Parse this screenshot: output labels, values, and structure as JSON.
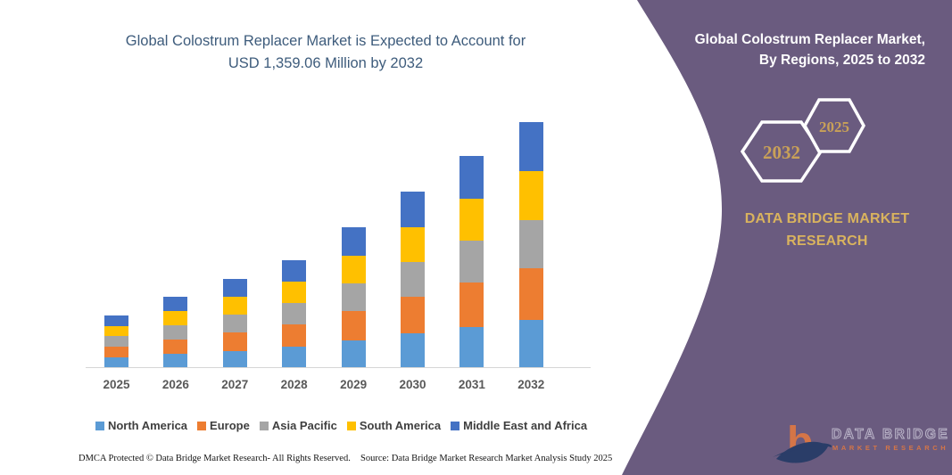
{
  "left_panel": {
    "title_line1": "Global Colostrum Replacer Market is Expected to Account for",
    "title_line2": "USD 1,359.06 Million by 2032",
    "footer_left": "DMCA Protected © Data Bridge Market Research-  All Rights Reserved.",
    "footer_source": "Source: Data Bridge Market Research  Market Analysis Study 2025"
  },
  "chart_data": {
    "type": "bar",
    "stacked": true,
    "unit": "USD Million",
    "title": "Global Colostrum Replacer Market is Expected to Account for USD 1,359.06 Million by 2032",
    "categories": [
      "2025",
      "2026",
      "2027",
      "2028",
      "2029",
      "2030",
      "2031",
      "2032"
    ],
    "series": [
      {
        "name": "North America",
        "color": "#5b9bd5",
        "values": [
          57,
          77,
          96,
          116,
          152,
          190,
          228,
          265
        ]
      },
      {
        "name": "Europe",
        "color": "#ed7d31",
        "values": [
          61,
          83,
          103,
          125,
          163,
          205,
          246,
          285
        ]
      },
      {
        "name": "Asia Pacific",
        "color": "#a5a5a5",
        "values": [
          57,
          77,
          96,
          116,
          152,
          190,
          228,
          265
        ]
      },
      {
        "name": "South America",
        "color": "#ffc000",
        "values": [
          58,
          79,
          98,
          119,
          155,
          195,
          234,
          272
        ]
      },
      {
        "name": "Middle East and Africa",
        "color": "#4472c4",
        "values": [
          58,
          79,
          99,
          119,
          155,
          195,
          235,
          272.06
        ]
      }
    ],
    "totals_estimated": [
      291,
      395,
      492,
      595,
      777,
      975,
      1171,
      1359.06
    ],
    "value_axis_visible": false,
    "legend_position": "bottom"
  },
  "right_panel": {
    "background_color": "#6a5b7f",
    "title_line1": "Global Colostrum Replacer Market,",
    "title_line2": "By Regions, 2025 to 2032",
    "hexagon_back_label": "2032",
    "hexagon_front_label": "2025",
    "hexagon_label_color": "#c9a158",
    "brand_line1": "DATA BRIDGE MARKET",
    "brand_line2": "RESEARCH",
    "brand_color": "#d9b35e",
    "logo": {
      "monogram": "b",
      "line1": "DATA BRIDGE",
      "line2": "MARKET RESEARCH",
      "orange": "#e87a3e",
      "navy": "#1f3864",
      "letter_gray": "#cac5d6"
    }
  }
}
